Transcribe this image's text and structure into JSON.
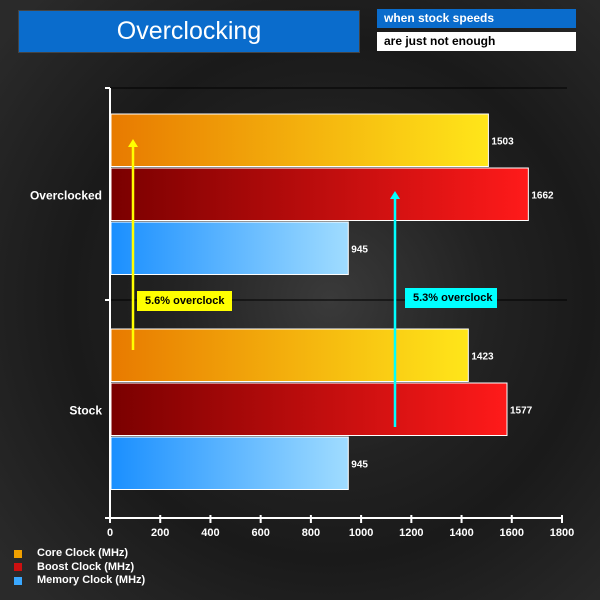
{
  "header": {
    "title": "Overclocking",
    "subtitle_1": "when stock speeds",
    "subtitle_2": "are just not enough"
  },
  "annotations": [
    {
      "text": "5.6% overclock",
      "color": "#ffff00"
    },
    {
      "text": "5.3% overclock",
      "color": "#00ffff"
    }
  ],
  "chart_data": {
    "type": "bar",
    "orientation": "horizontal",
    "categories": [
      "Overclocked",
      "Stock"
    ],
    "series": [
      {
        "name": "Core Clock (MHz)",
        "values": [
          1503,
          1423
        ],
        "color_start": "#e87a00",
        "color_end": "#ffe61a"
      },
      {
        "name": "Boost Clock (MHz)",
        "values": [
          1662,
          1577
        ],
        "color_start": "#7a0000",
        "color_end": "#ff1a1a"
      },
      {
        "name": "Memory Clock (MHz)",
        "values": [
          945,
          945
        ],
        "color_start": "#1a8fff",
        "color_end": "#a0dcff"
      }
    ],
    "xlim": [
      0,
      1800
    ],
    "xticks": [
      0,
      200,
      400,
      600,
      800,
      1000,
      1200,
      1400,
      1600,
      1800
    ],
    "legend": "bottom-left"
  }
}
